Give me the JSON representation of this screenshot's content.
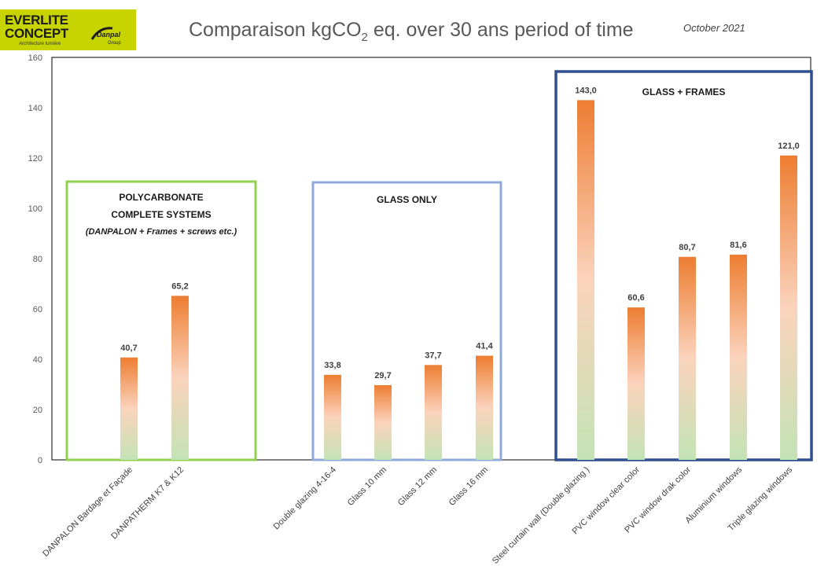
{
  "header": {
    "logo_line1": "EVERLITE",
    "logo_line2": "CONCEPT",
    "logo_tagline": "Architecture lumière",
    "logo_brand": "Danpal",
    "logo_group": "Group",
    "title_main": "Comparaison kgCO",
    "title_sub": "2",
    "title_rest": " eq. over 30 ans period of time",
    "date": "October 2021"
  },
  "colors": {
    "bar_top": "#ed7d31",
    "bar_mid": "#fbd3bd",
    "bar_bottom": "#c3e3b5",
    "group_polycarbonate": "#92d050",
    "group_glass_only": "#8eaadb",
    "group_glass_frames": "#2f4f8f"
  },
  "chart_data": {
    "type": "bar",
    "ylim": [
      0,
      160
    ],
    "yticks": [
      0,
      20,
      40,
      60,
      80,
      100,
      120,
      140,
      160
    ],
    "grid": false,
    "xlabel": "",
    "ylabel": "",
    "categories": [
      "DANPALON Bardage et Façade",
      "DANPATHERM K7 & K12",
      "Double glazing  4-16-4",
      "Glass 10 mm",
      "Glass 12 mm",
      "Glass  16 mm",
      "Steel curtain wall (Double glazing )",
      "PVC window clear color",
      "PVC window drak color",
      "Aluminium windows",
      "Triple glazing windows"
    ],
    "values": [
      40.7,
      65.2,
      33.8,
      29.7,
      37.7,
      41.4,
      143.0,
      60.6,
      80.7,
      81.6,
      121.0
    ],
    "value_labels": [
      "40,7",
      "65,2",
      "33,8",
      "29,7",
      "37,7",
      "41,4",
      "143,0",
      "60,6",
      "80,7",
      "81,6",
      "121,0"
    ],
    "groups": [
      {
        "title_lines": [
          "POLYCARBONATE",
          "COMPLETE SYSTEMS"
        ],
        "subtitle": "(DANPALON + Frames + screws etc.)",
        "color_key": "group_polycarbonate"
      },
      {
        "title_lines": [
          "GLASS ONLY"
        ],
        "subtitle": "",
        "color_key": "group_glass_only"
      },
      {
        "title_lines": [
          "GLASS + FRAMES"
        ],
        "subtitle": "",
        "color_key": "group_glass_frames"
      }
    ]
  }
}
